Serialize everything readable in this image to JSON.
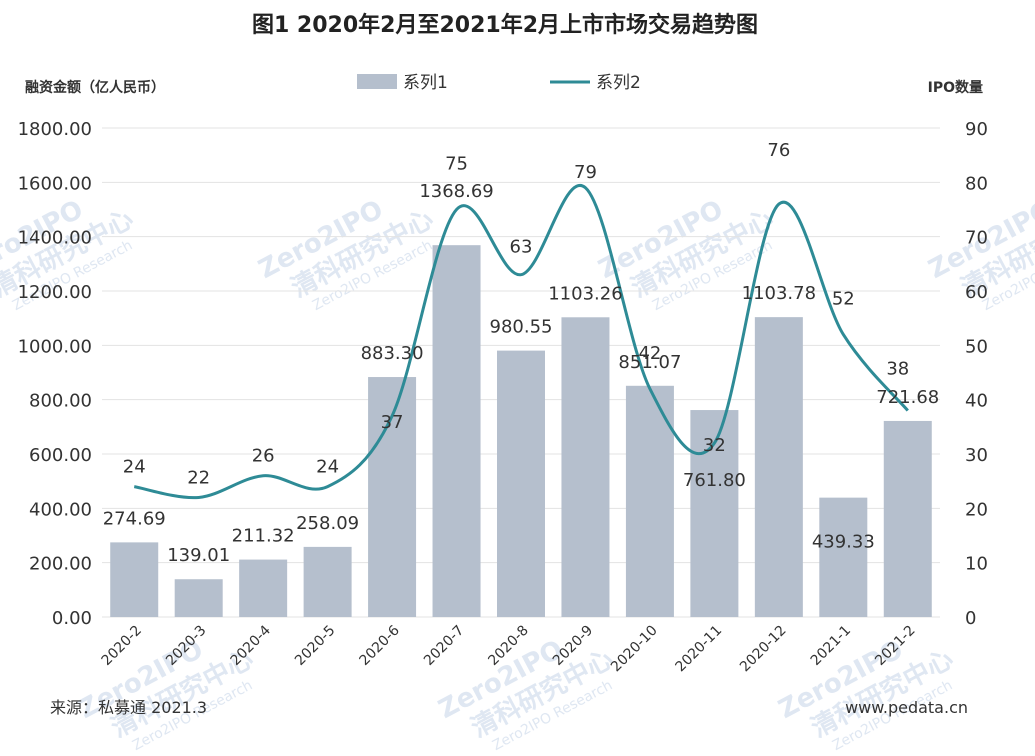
{
  "chart_data": {
    "type": "bar",
    "title": "图1  2020年2月至2021年2月上市市场交易趋势图",
    "ylabel_left": "融资金额（亿人民币）",
    "ylabel_right": "IPO数量",
    "categories": [
      "2020-2",
      "2020-3",
      "2020-4",
      "2020-5",
      "2020-6",
      "2020-7",
      "2020-8",
      "2020-9",
      "2020-10",
      "2020-11",
      "2020-12",
      "2021-1",
      "2021-2"
    ],
    "series": [
      {
        "name": "系列1",
        "type": "bar",
        "axis": "left",
        "values": [
          274.69,
          139.01,
          211.32,
          258.09,
          883.3,
          1368.69,
          980.55,
          1103.26,
          851.07,
          761.8,
          1103.78,
          439.33,
          721.68
        ],
        "labels": [
          "274.69",
          "139.01",
          "211.32",
          "258.09",
          "883.30",
          "1368.69",
          "980.55",
          "1103.26",
          "851.07",
          "761.80",
          "1103.78",
          "439.33",
          "721.68"
        ]
      },
      {
        "name": "系列2",
        "type": "line",
        "axis": "right",
        "values": [
          24,
          22,
          26,
          24,
          37,
          75,
          63,
          79,
          42,
          32,
          76,
          52,
          38
        ],
        "labels": [
          "24",
          "22",
          "26",
          "24",
          "37",
          "75",
          "63",
          "79",
          "42",
          "32",
          "76",
          "52",
          "38"
        ]
      }
    ],
    "y_left": {
      "range": [
        0,
        1800
      ],
      "ticks": [
        "0.00",
        "200.00",
        "400.00",
        "600.00",
        "800.00",
        "1000.00",
        "1200.00",
        "1400.00",
        "1600.00",
        "1800.00"
      ]
    },
    "y_right": {
      "range": [
        0,
        90
      ],
      "ticks": [
        "0",
        "10",
        "20",
        "30",
        "40",
        "50",
        "60",
        "70",
        "80",
        "90"
      ]
    },
    "colors": {
      "bar": "#b5bfcd",
      "line": "#2e8b96"
    },
    "legend": "top-center",
    "grid": true
  },
  "footer": {
    "source": "来源：私募通 2021.3",
    "website": "www.pedata.cn"
  },
  "watermark": {
    "brand": "Zero2IPO",
    "cn": "清科研究中心",
    "en": "Zero2IPO Research"
  }
}
